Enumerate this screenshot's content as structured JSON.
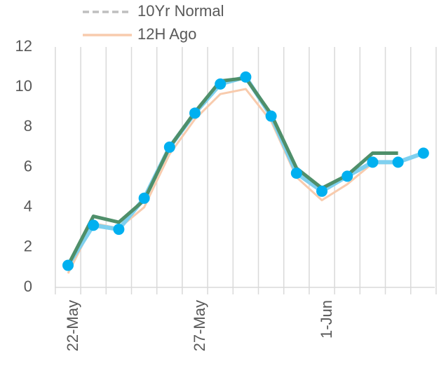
{
  "chart_data": {
    "type": "line",
    "categories": [
      "22-May",
      null,
      null,
      null,
      null,
      "27-May",
      null,
      null,
      null,
      null,
      "1-Jun",
      null,
      null,
      null,
      null
    ],
    "series": [
      {
        "name": "10Yr Normal",
        "color": "#bfbfbf",
        "dash": true,
        "values": [
          null,
          null,
          null,
          null,
          null,
          null,
          null,
          null,
          null,
          null,
          null,
          null,
          null,
          null,
          null
        ]
      },
      {
        "name": "12H Ago",
        "color": "#f8cbad",
        "values": [
          0.7,
          3.2,
          2.95,
          4.0,
          6.65,
          8.4,
          9.65,
          9.9,
          8.3,
          5.5,
          4.35,
          5.15,
          6.2,
          6.2,
          null
        ]
      },
      {
        "color": "#7fd0ef",
        "markers": "#00b0f0",
        "values": [
          1.1,
          3.1,
          2.9,
          4.45,
          7.0,
          8.7,
          10.15,
          10.5,
          8.55,
          5.7,
          4.8,
          5.55,
          6.25,
          6.25,
          6.7
        ]
      },
      {
        "color": "#4f8f6a",
        "values": [
          1.1,
          3.55,
          3.25,
          4.35,
          7.0,
          8.75,
          10.3,
          10.45,
          8.65,
          5.95,
          4.95,
          5.6,
          6.7,
          6.7,
          null
        ]
      }
    ],
    "ylim": [
      0,
      12
    ],
    "yticks": [
      0,
      2,
      4,
      6,
      8,
      10,
      12
    ],
    "grid": "x"
  }
}
